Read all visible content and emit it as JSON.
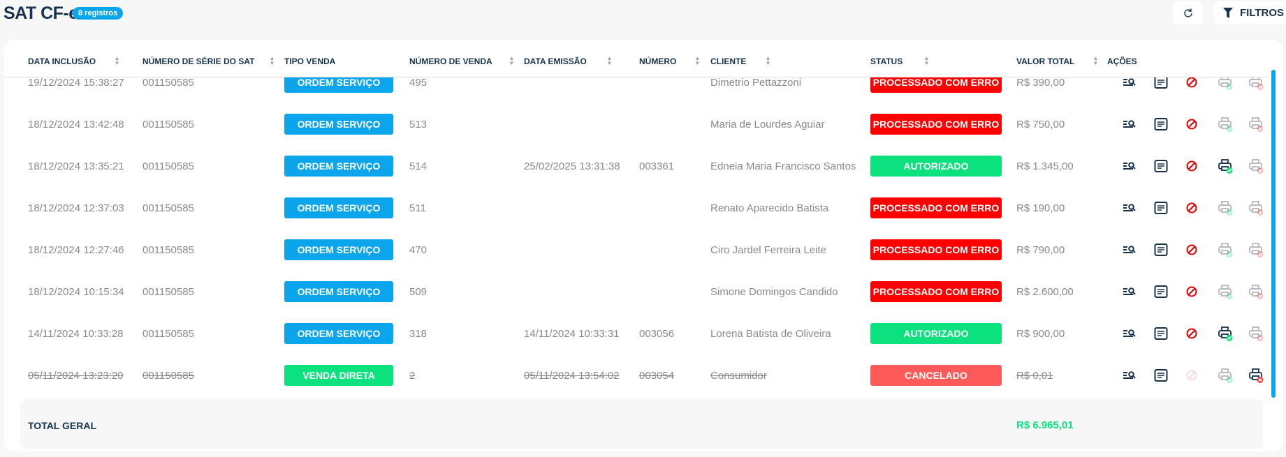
{
  "header": {
    "title": "SAT CF-e",
    "count_badge": "8 registros",
    "refresh_icon": "refresh-icon",
    "filters_label": "FILTROS",
    "filters_icon": "funnel-icon"
  },
  "colors": {
    "primary": "#16324f",
    "info": "#0ba5ec",
    "error": "#ff0000",
    "success": "#0be27d",
    "cancelled": "#ff5a5a"
  },
  "columns": [
    "DATA INCLUSÃO",
    "NÚMERO DE SÉRIE DO SAT",
    "TIPO VENDA",
    "NÚMERO DE VENDA",
    "DATA EMISSÃO",
    "NÚMERO",
    "CLIENTE",
    "STATUS",
    "VALOR TOTAL",
    "AÇÕES"
  ],
  "rows": [
    {
      "data_inclusao": "19/12/2024 15:38:27",
      "serie": "001150585",
      "tipo": "ORDEM SERVIÇO",
      "num_venda": "495",
      "data_emissao": "",
      "numero": "",
      "cliente": "Dimetrio Pettazzoni",
      "status": "PROCESSADO COM ERRO",
      "valor": "R$ 390,00"
    },
    {
      "data_inclusao": "18/12/2024 13:42:48",
      "serie": "001150585",
      "tipo": "ORDEM SERVIÇO",
      "num_venda": "513",
      "data_emissao": "",
      "numero": "",
      "cliente": "Maria de Lourdes Aguiar",
      "status": "PROCESSADO COM ERRO",
      "valor": "R$ 750,00"
    },
    {
      "data_inclusao": "18/12/2024 13:35:21",
      "serie": "001150585",
      "tipo": "ORDEM SERVIÇO",
      "num_venda": "514",
      "data_emissao": "25/02/2025 13:31:38",
      "numero": "003361",
      "cliente": "Edneia Maria Francisco Santos",
      "status": "AUTORIZADO",
      "valor": "R$ 1.345,00"
    },
    {
      "data_inclusao": "18/12/2024 12:37:03",
      "serie": "001150585",
      "tipo": "ORDEM SERVIÇO",
      "num_venda": "511",
      "data_emissao": "",
      "numero": "",
      "cliente": "Renato Aparecido Batista",
      "status": "PROCESSADO COM ERRO",
      "valor": "R$ 190,00"
    },
    {
      "data_inclusao": "18/12/2024 12:27:46",
      "serie": "001150585",
      "tipo": "ORDEM SERVIÇO",
      "num_venda": "470",
      "data_emissao": "",
      "numero": "",
      "cliente": "Ciro Jardel Ferreira Leite",
      "status": "PROCESSADO COM ERRO",
      "valor": "R$ 790,00"
    },
    {
      "data_inclusao": "18/12/2024 10:15:34",
      "serie": "001150585",
      "tipo": "ORDEM SERVIÇO",
      "num_venda": "509",
      "data_emissao": "",
      "numero": "",
      "cliente": "Simone Domingos Candido",
      "status": "PROCESSADO COM ERRO",
      "valor": "R$ 2.600,00"
    },
    {
      "data_inclusao": "14/11/2024 10:33:28",
      "serie": "001150585",
      "tipo": "ORDEM SERVIÇO",
      "num_venda": "318",
      "data_emissao": "14/11/2024 10:33:31",
      "numero": "003056",
      "cliente": "Lorena Batista de Oliveira",
      "status": "AUTORIZADO",
      "valor": "R$ 900,00"
    },
    {
      "data_inclusao": "05/11/2024 13:23:20",
      "serie": "001150585",
      "tipo": "VENDA DIRETA",
      "num_venda": "2",
      "data_emissao": "05/11/2024 13:54:02",
      "numero": "003054",
      "cliente": "Consumidor",
      "status": "CANCELADO",
      "valor": "R$ 0,01"
    }
  ],
  "footer": {
    "label": "TOTAL GERAL",
    "total": "R$ 6.965,01"
  }
}
